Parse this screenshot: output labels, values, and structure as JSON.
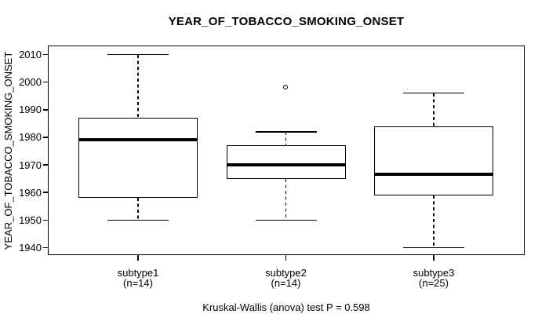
{
  "figure": {
    "background": "#ffffff",
    "foreground": "#000000"
  },
  "chart_data": {
    "type": "boxplot",
    "title": "YEAR_OF_TOBACCO_SMOKING_ONSET",
    "xlabel": "",
    "ylabel": "YEAR_OF_TOBACCO_SMOKING_ONSET",
    "ylim": [
      1937,
      2013
    ],
    "y_ticks": [
      1940,
      1950,
      1960,
      1970,
      1980,
      1990,
      2000,
      2010
    ],
    "grid": false,
    "legend": "none",
    "annotation": "Kruskal-Wallis (anova) test P = 0.598",
    "groups": [
      {
        "label": "subtype1",
        "sublabel": "(n=14)",
        "n": 14,
        "whisker_low": 1950,
        "q1": 1958,
        "median": 1979,
        "q3": 1987,
        "whisker_high": 2010,
        "outliers": []
      },
      {
        "label": "subtype2",
        "sublabel": "(n=14)",
        "n": 14,
        "whisker_low": 1950,
        "q1": 1965,
        "median": 1970,
        "q3": 1977,
        "whisker_high": 1982,
        "outliers": [
          1998
        ]
      },
      {
        "label": "subtype3",
        "sublabel": "(n=25)",
        "n": 25,
        "whisker_low": 1940,
        "q1": 1959,
        "median": 1966.5,
        "q3": 1984,
        "whisker_high": 1996,
        "outliers": []
      }
    ]
  }
}
